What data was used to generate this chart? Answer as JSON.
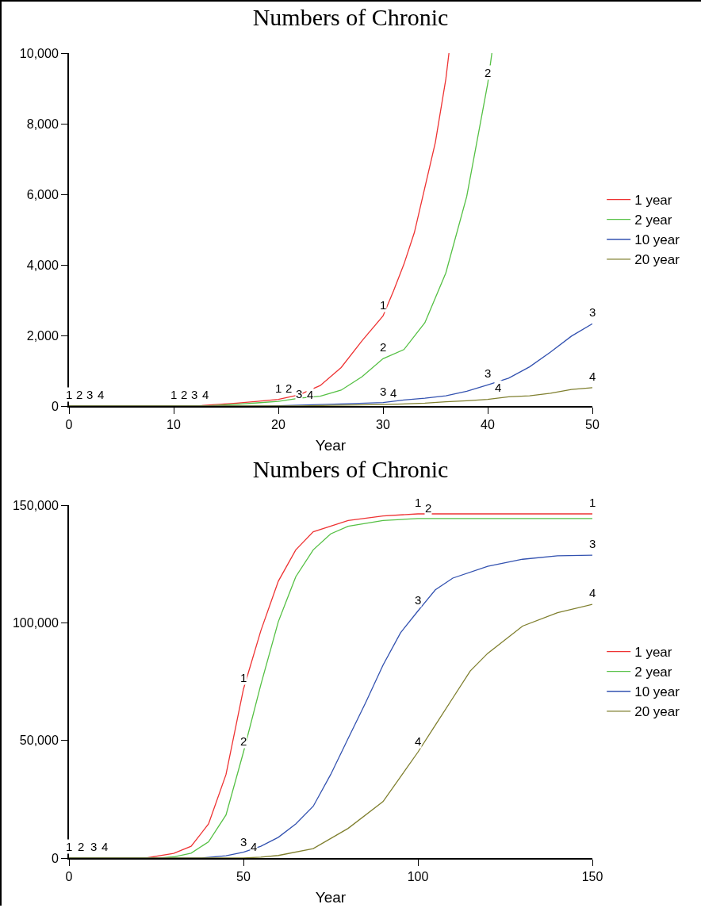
{
  "chart_data": [
    {
      "type": "line",
      "title": "Numbers of Chronic",
      "xlabel": "Year",
      "xlim": [
        0,
        50
      ],
      "xticks": [
        0,
        10,
        20,
        30,
        40,
        50
      ],
      "ylim": [
        0,
        10000
      ],
      "yticks": [
        0,
        {
          "value": 2000,
          "label": "2,000"
        },
        {
          "value": 4000,
          "label": "4,000"
        },
        {
          "value": 6000,
          "label": "6,000"
        },
        {
          "value": 8000,
          "label": "8,000"
        },
        {
          "value": 10000,
          "label": "10,000"
        }
      ],
      "grid": false,
      "legend": "right",
      "series": [
        {
          "name": "1 year",
          "color": "#ee3333",
          "x": [
            0,
            12,
            14,
            16,
            18,
            20,
            22,
            24,
            26,
            28,
            30,
            31,
            32,
            33,
            35,
            36,
            36.3
          ],
          "values": [
            0,
            0,
            40,
            80,
            130,
            190,
            320,
            580,
            1090,
            1850,
            2550,
            3260,
            4020,
            4920,
            7470,
            9260,
            10000
          ]
        },
        {
          "name": "2 year",
          "color": "#55c044",
          "x": [
            0,
            13,
            16,
            18,
            20,
            22,
            24,
            26,
            28,
            30,
            32,
            34,
            36,
            38,
            40,
            40.4
          ],
          "values": [
            0,
            0,
            50,
            90,
            130,
            220,
            280,
            450,
            830,
            1340,
            1600,
            2360,
            3770,
            5940,
            9130,
            10000
          ]
        },
        {
          "name": "10 year",
          "color": "#3352b0",
          "x": [
            0,
            19,
            20,
            26,
            30,
            32,
            34,
            36,
            38,
            40,
            42,
            44,
            46,
            48,
            50
          ],
          "values": [
            0,
            0,
            10,
            60,
            100,
            170,
            220,
            290,
            420,
            600,
            790,
            1110,
            1530,
            1980,
            2330
          ]
        },
        {
          "name": "20 year",
          "color": "#7f7f2e",
          "x": [
            0,
            22,
            25,
            30,
            34,
            36,
            38,
            40,
            42,
            44,
            46,
            48,
            50
          ],
          "values": [
            0,
            0,
            20,
            40,
            80,
            120,
            150,
            190,
            260,
            290,
            360,
            470,
            520
          ]
        }
      ],
      "annotations": [
        {
          "text": "1",
          "x": 0,
          "y": 0
        },
        {
          "text": "2",
          "x": 1,
          "y": 0
        },
        {
          "text": "3",
          "x": 2,
          "y": 0
        },
        {
          "text": "4",
          "x": 3,
          "y": 0
        },
        {
          "text": "1",
          "x": 10,
          "y": 0
        },
        {
          "text": "2",
          "x": 11,
          "y": 0
        },
        {
          "text": "3",
          "x": 12,
          "y": 0
        },
        {
          "text": "4",
          "x": 13,
          "y": 0
        },
        {
          "text": "1",
          "x": 20,
          "y": 190
        },
        {
          "text": "2",
          "x": 21,
          "y": 170
        },
        {
          "text": "3",
          "x": 22,
          "y": 20
        },
        {
          "text": "4",
          "x": 23,
          "y": 10
        },
        {
          "text": "1",
          "x": 30,
          "y": 2550
        },
        {
          "text": "2",
          "x": 30,
          "y": 1340
        },
        {
          "text": "3",
          "x": 30,
          "y": 100
        },
        {
          "text": "4",
          "x": 31,
          "y": 45
        },
        {
          "text": "2",
          "x": 40,
          "y": 9130
        },
        {
          "text": "3",
          "x": 40,
          "y": 600
        },
        {
          "text": "4",
          "x": 41,
          "y": 200
        },
        {
          "text": "3",
          "x": 50,
          "y": 2330
        },
        {
          "text": "4",
          "x": 50,
          "y": 520
        }
      ]
    },
    {
      "type": "line",
      "title": "Numbers of Chronic",
      "xlabel": "Year",
      "xlim": [
        0,
        150
      ],
      "xticks": [
        0,
        50,
        100,
        150
      ],
      "ylim": [
        0,
        150000
      ],
      "yticks": [
        0,
        {
          "value": 50000,
          "label": "50,000"
        },
        {
          "value": 100000,
          "label": "100,000"
        },
        {
          "value": 150000,
          "label": "150,000"
        }
      ],
      "grid": false,
      "legend": "right",
      "series": [
        {
          "name": "1 year",
          "color": "#ee3333",
          "x": [
            0,
            22,
            30,
            35,
            40,
            45,
            50,
            55,
            60,
            65,
            70,
            80,
            90,
            100,
            150
          ],
          "values": [
            0,
            0,
            2000,
            5000,
            14500,
            35500,
            71800,
            96700,
            117700,
            131000,
            138700,
            143500,
            145400,
            146300,
            146300
          ]
        },
        {
          "name": "2 year",
          "color": "#55c044",
          "x": [
            0,
            26,
            30,
            35,
            40,
            45,
            50,
            55,
            60,
            65,
            70,
            75,
            80,
            90,
            100,
            150
          ],
          "values": [
            0,
            0,
            500,
            2100,
            6900,
            18300,
            45000,
            73800,
            100500,
            119600,
            131000,
            137800,
            141000,
            143500,
            144300,
            144300
          ]
        },
        {
          "name": "10 year",
          "color": "#3352b0",
          "x": [
            0,
            38,
            45,
            50,
            55,
            60,
            65,
            70,
            75,
            80,
            85,
            90,
            95,
            100,
            105,
            110,
            120,
            130,
            140,
            150
          ],
          "values": [
            0,
            0,
            1000,
            2500,
            5000,
            8800,
            14500,
            22000,
            35500,
            50800,
            66000,
            82000,
            95700,
            105000,
            114000,
            119000,
            124000,
            127000,
            128500,
            128700
          ]
        },
        {
          "name": "20 year",
          "color": "#7f7f2e",
          "x": [
            0,
            50,
            55,
            60,
            70,
            80,
            90,
            100,
            105,
            110,
            115,
            120,
            130,
            140,
            150
          ],
          "values": [
            0,
            0,
            400,
            1100,
            4000,
            12600,
            24000,
            45000,
            56500,
            68000,
            79500,
            87000,
            98600,
            104300,
            107800
          ]
        }
      ],
      "annotations": [
        {
          "text": "1",
          "x": 0,
          "y": 0
        },
        {
          "text": "2",
          "x": 3.5,
          "y": 0
        },
        {
          "text": "3",
          "x": 7,
          "y": 0
        },
        {
          "text": "4",
          "x": 10.3,
          "y": 0
        },
        {
          "text": "1",
          "x": 50,
          "y": 71800
        },
        {
          "text": "2",
          "x": 50,
          "y": 45000
        },
        {
          "text": "3",
          "x": 50,
          "y": 2000
        },
        {
          "text": "4",
          "x": 53,
          "y": 0
        },
        {
          "text": "1",
          "x": 100,
          "y": 146300
        },
        {
          "text": "2",
          "x": 103,
          "y": 143800
        },
        {
          "text": "3",
          "x": 100,
          "y": 105000
        },
        {
          "text": "4",
          "x": 100,
          "y": 45000
        },
        {
          "text": "1",
          "x": 150,
          "y": 146300
        },
        {
          "text": "3",
          "x": 150,
          "y": 128700
        },
        {
          "text": "4",
          "x": 150,
          "y": 107800
        }
      ]
    }
  ]
}
